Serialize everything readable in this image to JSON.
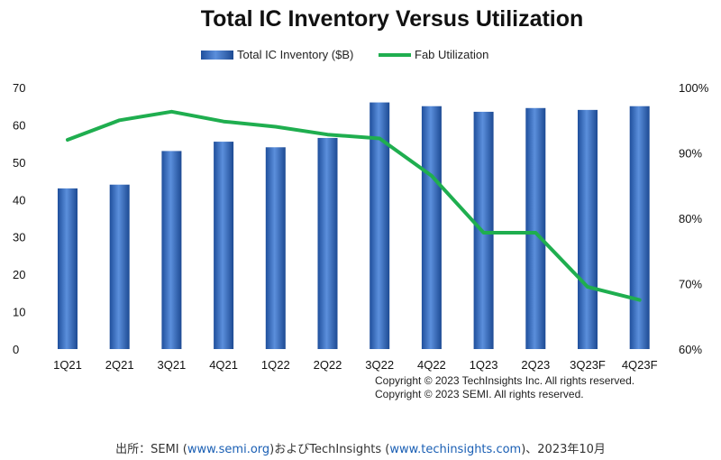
{
  "chart_data": {
    "type": "bar",
    "title": "Total IC Inventory Versus Utilization",
    "categories": [
      "1Q21",
      "2Q21",
      "3Q21",
      "4Q21",
      "1Q22",
      "2Q22",
      "3Q22",
      "4Q22",
      "1Q23",
      "2Q23",
      "3Q23F",
      "4Q23F"
    ],
    "series": [
      {
        "name": "Total IC Inventory ($B)",
        "type": "bar",
        "axis": "left",
        "color": "#3a6fc4",
        "values": [
          43,
          44,
          53,
          55.5,
          54,
          56.5,
          66,
          65,
          63.5,
          64.5,
          64,
          65
        ]
      },
      {
        "name": "Fab Utilization",
        "type": "line",
        "axis": "right",
        "color": "#1fae4f",
        "values": [
          92,
          95,
          96.3,
          94.8,
          94,
          92.8,
          92.2,
          86.5,
          77.8,
          77.8,
          69.5,
          67.5
        ]
      }
    ],
    "y_left": {
      "min": 0,
      "max": 70,
      "ticks": [
        "0",
        "10",
        "20",
        "30",
        "40",
        "50",
        "60",
        "70"
      ]
    },
    "y_right": {
      "min": 60,
      "max": 100,
      "ticks": [
        "60%",
        "70%",
        "80%",
        "90%",
        "100%"
      ]
    },
    "grid": false,
    "legend_position": "top-center"
  },
  "copyright": [
    "Copyright © 2023 TechInsights Inc.  All rights reserved.",
    "Copyright © 2023 SEMI.  All rights reserved."
  ],
  "source": {
    "prefix": "出所：SEMI (",
    "link1": "www.semi.org",
    "middle": ")およびTechInsights (",
    "link2": "www.techinsights.com",
    "suffix": ")、2023年10月"
  }
}
